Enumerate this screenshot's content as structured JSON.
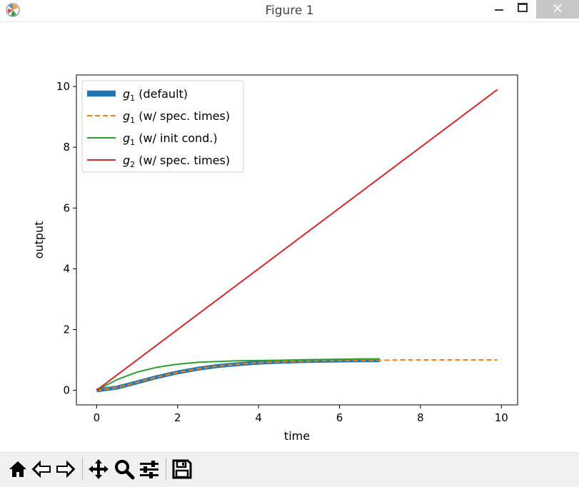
{
  "window": {
    "title": "Figure 1",
    "close_glyph": "×"
  },
  "toolbar": {
    "buttons": [
      {
        "icon": "home-icon",
        "tooltip": "Reset original view"
      },
      {
        "icon": "back-arrow-icon",
        "tooltip": "Back to previous view"
      },
      {
        "icon": "forward-arrow-icon",
        "tooltip": "Forward to next view"
      },
      {
        "icon": "pan-icon",
        "tooltip": "Pan axes"
      },
      {
        "icon": "zoom-icon",
        "tooltip": "Zoom to rectangle"
      },
      {
        "icon": "configure-subplots-icon",
        "tooltip": "Configure subplots"
      },
      {
        "icon": "save-icon",
        "tooltip": "Save the figure"
      }
    ]
  },
  "chart_data": {
    "type": "line",
    "xlabel": "time",
    "ylabel": "output",
    "xlim": [
      -0.5,
      10.4
    ],
    "ylim": [
      -0.48,
      10.38
    ],
    "xticks": [
      0,
      2,
      4,
      6,
      8,
      10
    ],
    "yticks": [
      0,
      2,
      4,
      6,
      8,
      10
    ],
    "grid": false,
    "legend_position": "top-left",
    "series": [
      {
        "name_main": "g",
        "name_sub": "1",
        "name_rest": " (default)",
        "color": "#1f77b4",
        "style": "solid-thick",
        "x": [
          0,
          0.5,
          1,
          1.5,
          2,
          2.5,
          3,
          3.5,
          4,
          4.5,
          5,
          5.5,
          6,
          6.5,
          7
        ],
        "y": [
          0,
          0.09,
          0.26,
          0.44,
          0.59,
          0.71,
          0.8,
          0.86,
          0.91,
          0.94,
          0.96,
          0.97,
          0.98,
          0.99,
          0.99
        ]
      },
      {
        "name_main": "g",
        "name_sub": "1",
        "name_rest": " (w/ spec. times)",
        "color": "#ff7f0e",
        "style": "dashed",
        "x": [
          0,
          0.5,
          1,
          1.5,
          2,
          2.5,
          3,
          3.5,
          4,
          4.5,
          5,
          5.5,
          6,
          6.5,
          7,
          7.5,
          8,
          8.5,
          9,
          9.5,
          9.9
        ],
        "y": [
          0,
          0.09,
          0.26,
          0.44,
          0.59,
          0.71,
          0.8,
          0.86,
          0.91,
          0.94,
          0.96,
          0.97,
          0.98,
          0.99,
          0.99,
          1.0,
          1.0,
          1.0,
          1.0,
          1.0,
          1.0
        ]
      },
      {
        "name_main": "g",
        "name_sub": "1",
        "name_rest": " (w/ init cond.)",
        "color": "#2ca02c",
        "style": "solid",
        "x": [
          0,
          0.5,
          1,
          1.5,
          2,
          2.5,
          3,
          3.5,
          4,
          4.5,
          5,
          5.5,
          6,
          6.5,
          7
        ],
        "y": [
          0,
          0.35,
          0.6,
          0.76,
          0.86,
          0.92,
          0.95,
          0.97,
          0.98,
          0.99,
          1.0,
          1.01,
          1.02,
          1.03,
          1.03
        ]
      },
      {
        "name_main": "g",
        "name_sub": "2",
        "name_rest": " (w/ spec. times)",
        "color": "#d62728",
        "style": "solid",
        "x": [
          0,
          9.9
        ],
        "y": [
          0,
          9.9
        ]
      }
    ]
  }
}
